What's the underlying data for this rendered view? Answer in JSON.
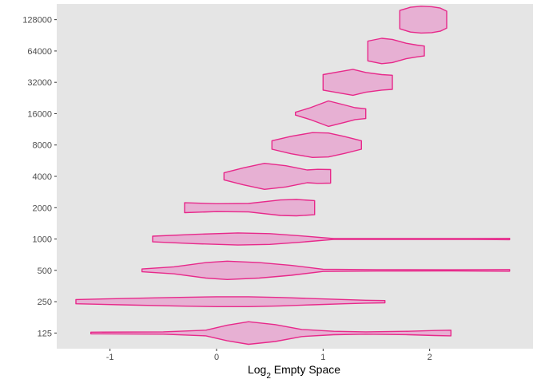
{
  "chart_data": {
    "type": "violin",
    "orientation": "horizontal",
    "xlabel_base": "Log",
    "xlabel_sub": "2",
    "xlabel_rest": " Empty Space",
    "ylabel": "",
    "xlim": [
      -1.5,
      2.97
    ],
    "x_ticks": [
      -1,
      0,
      1,
      2
    ],
    "x_tick_labels": [
      "-1",
      "0",
      "1",
      "2"
    ],
    "categories": [
      "125",
      "250",
      "500",
      "1000",
      "2000",
      "4000",
      "8000",
      "16000",
      "32000",
      "64000",
      "128000"
    ],
    "grid": false,
    "panel_background": "#e5e5e5",
    "colors": {
      "fill": "#e7b0d3",
      "stroke": "#e7298a"
    },
    "violins": [
      {
        "category": "125",
        "profile": [
          [
            -1.18,
            0.06
          ],
          [
            -0.5,
            0.08
          ],
          [
            -0.1,
            0.2
          ],
          [
            0.1,
            0.55
          ],
          [
            0.3,
            0.8
          ],
          [
            0.55,
            0.6
          ],
          [
            0.8,
            0.25
          ],
          [
            1.1,
            0.12
          ],
          [
            1.4,
            0.08
          ],
          [
            1.8,
            0.12
          ],
          [
            2.05,
            0.18
          ],
          [
            2.2,
            0.2
          ]
        ]
      },
      {
        "category": "250",
        "profile": [
          [
            -1.32,
            0.15
          ],
          [
            -0.9,
            0.22
          ],
          [
            -0.4,
            0.3
          ],
          [
            0.0,
            0.35
          ],
          [
            0.3,
            0.35
          ],
          [
            0.6,
            0.3
          ],
          [
            0.9,
            0.22
          ],
          [
            1.2,
            0.15
          ],
          [
            1.4,
            0.1
          ],
          [
            1.58,
            0.08
          ]
        ]
      },
      {
        "category": "500",
        "profile": [
          [
            -0.7,
            0.1
          ],
          [
            -0.4,
            0.25
          ],
          [
            -0.1,
            0.55
          ],
          [
            0.1,
            0.65
          ],
          [
            0.4,
            0.55
          ],
          [
            0.7,
            0.35
          ],
          [
            1.0,
            0.08
          ],
          [
            1.5,
            0.05
          ],
          [
            2.2,
            0.04
          ],
          [
            2.75,
            0.06
          ]
        ]
      },
      {
        "category": "1000",
        "profile": [
          [
            -0.6,
            0.2
          ],
          [
            -0.2,
            0.33
          ],
          [
            0.2,
            0.43
          ],
          [
            0.5,
            0.38
          ],
          [
            0.8,
            0.22
          ],
          [
            1.1,
            0.03
          ],
          [
            1.8,
            0.03
          ],
          [
            2.4,
            0.03
          ],
          [
            2.75,
            0.05
          ]
        ]
      },
      {
        "category": "2000",
        "profile": [
          [
            -0.3,
            0.35
          ],
          [
            0.0,
            0.28
          ],
          [
            0.3,
            0.3
          ],
          [
            0.6,
            0.55
          ],
          [
            0.75,
            0.58
          ],
          [
            0.92,
            0.5
          ]
        ]
      },
      {
        "category": "4000",
        "profile": [
          [
            0.07,
            0.25
          ],
          [
            0.25,
            0.6
          ],
          [
            0.45,
            0.92
          ],
          [
            0.65,
            0.75
          ],
          [
            0.85,
            0.45
          ],
          [
            0.95,
            0.5
          ],
          [
            1.07,
            0.48
          ]
        ]
      },
      {
        "category": "8000",
        "profile": [
          [
            0.52,
            0.3
          ],
          [
            0.7,
            0.62
          ],
          [
            0.9,
            0.88
          ],
          [
            1.05,
            0.85
          ],
          [
            1.2,
            0.6
          ],
          [
            1.36,
            0.3
          ]
        ]
      },
      {
        "category": "16000",
        "profile": [
          [
            0.74,
            0.1
          ],
          [
            0.88,
            0.42
          ],
          [
            1.05,
            0.9
          ],
          [
            1.2,
            0.62
          ],
          [
            1.3,
            0.42
          ],
          [
            1.4,
            0.35
          ]
        ]
      },
      {
        "category": "32000",
        "profile": [
          [
            1.0,
            0.55
          ],
          [
            1.15,
            0.75
          ],
          [
            1.28,
            0.92
          ],
          [
            1.4,
            0.7
          ],
          [
            1.55,
            0.55
          ],
          [
            1.65,
            0.5
          ]
        ]
      },
      {
        "category": "64000",
        "profile": [
          [
            1.42,
            0.7
          ],
          [
            1.55,
            0.9
          ],
          [
            1.65,
            0.82
          ],
          [
            1.78,
            0.55
          ],
          [
            1.88,
            0.42
          ],
          [
            1.95,
            0.35
          ]
        ]
      },
      {
        "category": "128000",
        "profile": [
          [
            1.72,
            0.65
          ],
          [
            1.82,
            0.88
          ],
          [
            1.92,
            0.95
          ],
          [
            2.02,
            0.92
          ],
          [
            2.1,
            0.82
          ],
          [
            2.16,
            0.6
          ]
        ]
      }
    ]
  }
}
